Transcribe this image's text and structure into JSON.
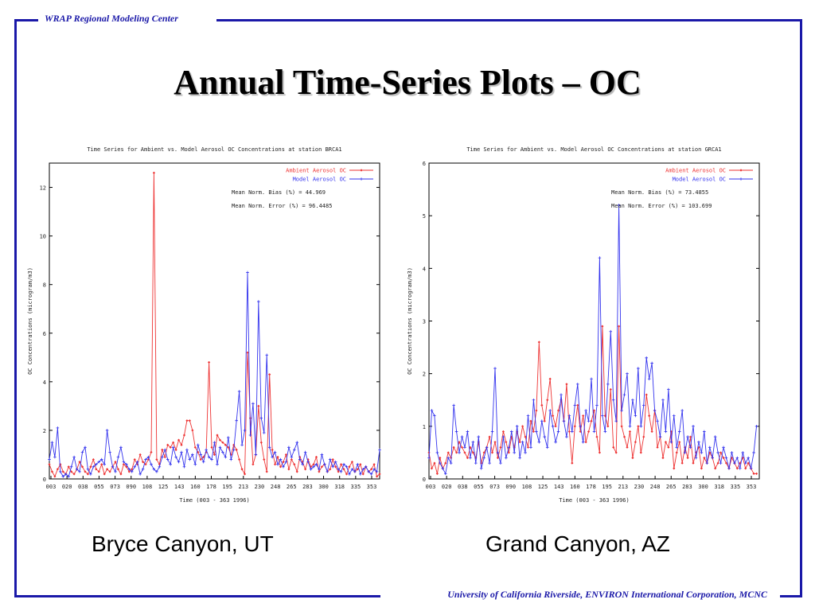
{
  "header": {
    "org": "WRAP Regional Modeling Center"
  },
  "footer": {
    "credits": "University of California Riverside, ENVIRON International Corporation, MCNC"
  },
  "slide": {
    "title": "Annual Time-Series Plots – OC"
  },
  "captions": [
    "Bryce Canyon, UT",
    "Grand Canyon, AZ"
  ],
  "colors": {
    "frame": "#1a18a8",
    "ambient": "#ee3333",
    "model": "#3333ee"
  },
  "chart_data": [
    {
      "type": "line",
      "title": "Time Series for Ambient vs. Model Aerosol OC Concentrations at station BRCA1",
      "xlabel": "Time    (003 - 363 1996)",
      "ylabel": "OC Concentrations (microgram/m3)",
      "xlim": [
        3,
        363
      ],
      "ylim": [
        0,
        13
      ],
      "yticks": [
        0,
        2,
        4,
        6,
        8,
        10,
        12
      ],
      "xticks": [
        "003",
        "020",
        "038",
        "055",
        "073",
        "090",
        "108",
        "125",
        "143",
        "160",
        "178",
        "195",
        "213",
        "230",
        "248",
        "265",
        "283",
        "300",
        "318",
        "335",
        "353"
      ],
      "legend_position": "top-right",
      "annotations": [
        "Mean Norm. Bias (%) = 44.969",
        "Mean Norm. Error (%) = 96.4485"
      ],
      "series": [
        {
          "name": "Ambient Aerosol OC",
          "marker": "diamond",
          "x": [
            3,
            6,
            9,
            12,
            15,
            18,
            21,
            24,
            27,
            30,
            33,
            36,
            39,
            42,
            45,
            48,
            51,
            54,
            57,
            60,
            63,
            66,
            69,
            72,
            75,
            78,
            81,
            84,
            87,
            90,
            93,
            96,
            99,
            102,
            105,
            108,
            111,
            114,
            117,
            120,
            123,
            126,
            129,
            132,
            135,
            138,
            141,
            144,
            147,
            150,
            153,
            156,
            159,
            162,
            165,
            168,
            171,
            174,
            177,
            180,
            183,
            186,
            189,
            192,
            195,
            198,
            201,
            204,
            207,
            210,
            213,
            216,
            219,
            222,
            225,
            228,
            231,
            234,
            237,
            240,
            243,
            246,
            249,
            252,
            255,
            258,
            261,
            264,
            267,
            270,
            273,
            276,
            279,
            282,
            285,
            288,
            291,
            294,
            297,
            300,
            303,
            306,
            309,
            312,
            315,
            318,
            321,
            324,
            327,
            330,
            333,
            336,
            339,
            342,
            345,
            348,
            351,
            354,
            357,
            360,
            363
          ],
          "y": [
            0.6,
            0.3,
            0.1,
            0.4,
            0.6,
            0.3,
            0.2,
            0.5,
            0.3,
            0.2,
            0.4,
            0.7,
            0.5,
            0.3,
            0.2,
            0.5,
            0.8,
            0.4,
            0.3,
            0.6,
            0.2,
            0.4,
            0.3,
            0.5,
            0.7,
            0.4,
            0.2,
            0.6,
            0.5,
            0.3,
            0.4,
            0.8,
            0.6,
            1.0,
            0.7,
            0.6,
            0.8,
            1.1,
            12.6,
            0.8,
            0.6,
            1.2,
            0.9,
            1.4,
            1.3,
            1.5,
            1.2,
            1.6,
            1.4,
            1.8,
            2.4,
            2.4,
            2.0,
            1.3,
            1.1,
            0.8,
            0.9,
            1.1,
            4.8,
            1.3,
            1.0,
            1.8,
            1.6,
            1.5,
            1.4,
            1.3,
            1.0,
            1.4,
            1.2,
            0.8,
            0.4,
            0.2,
            5.2,
            2.5,
            0.6,
            1.0,
            3.0,
            1.5,
            0.8,
            0.3,
            4.3,
            1.2,
            0.6,
            0.9,
            0.5,
            0.7,
            1.0,
            0.4,
            0.8,
            0.6,
            0.3,
            0.9,
            0.7,
            0.4,
            0.8,
            0.5,
            0.6,
            0.9,
            0.3,
            0.5,
            0.6,
            0.3,
            0.4,
            0.8,
            0.5,
            0.3,
            0.6,
            0.4,
            0.2,
            0.5,
            0.7,
            0.3,
            0.4,
            0.6,
            0.2,
            0.5,
            0.3,
            0.4,
            0.6,
            0.1,
            0.2
          ]
        },
        {
          "name": "Model Aerosol OC",
          "marker": "plus",
          "x": [
            3,
            6,
            9,
            12,
            15,
            18,
            21,
            24,
            27,
            30,
            33,
            36,
            39,
            42,
            45,
            48,
            51,
            54,
            57,
            60,
            63,
            66,
            69,
            72,
            75,
            78,
            81,
            84,
            87,
            90,
            93,
            96,
            99,
            102,
            105,
            108,
            111,
            114,
            117,
            120,
            123,
            126,
            129,
            132,
            135,
            138,
            141,
            144,
            147,
            150,
            153,
            156,
            159,
            162,
            165,
            168,
            171,
            174,
            177,
            180,
            183,
            186,
            189,
            192,
            195,
            198,
            201,
            204,
            207,
            210,
            213,
            216,
            219,
            222,
            225,
            228,
            231,
            234,
            237,
            240,
            243,
            246,
            249,
            252,
            255,
            258,
            261,
            264,
            267,
            270,
            273,
            276,
            279,
            282,
            285,
            288,
            291,
            294,
            297,
            300,
            303,
            306,
            309,
            312,
            315,
            318,
            321,
            324,
            327,
            330,
            333,
            336,
            339,
            342,
            345,
            348,
            351,
            354,
            357,
            360,
            363
          ],
          "y": [
            0.8,
            1.5,
            0.9,
            2.1,
            0.3,
            0.1,
            0.2,
            0.1,
            0.5,
            0.9,
            0.4,
            0.3,
            1.1,
            1.3,
            0.4,
            0.2,
            0.5,
            0.6,
            0.7,
            0.8,
            0.6,
            2.0,
            1.1,
            0.5,
            0.3,
            0.9,
            1.3,
            0.7,
            0.6,
            0.4,
            0.3,
            0.5,
            0.7,
            0.2,
            0.4,
            0.8,
            0.9,
            0.6,
            0.4,
            0.3,
            0.5,
            0.9,
            1.2,
            0.8,
            0.6,
            1.3,
            0.9,
            0.7,
            1.1,
            0.5,
            1.2,
            0.8,
            1.0,
            0.6,
            1.4,
            1.0,
            0.7,
            1.2,
            0.9,
            0.8,
            1.5,
            0.6,
            1.3,
            1.1,
            0.9,
            1.7,
            0.8,
            1.2,
            2.4,
            3.6,
            1.4,
            2.0,
            8.5,
            1.8,
            3.1,
            1.0,
            7.3,
            2.5,
            1.9,
            5.1,
            1.3,
            0.9,
            1.1,
            0.6,
            0.8,
            0.5,
            0.7,
            1.3,
            0.9,
            1.2,
            1.5,
            0.8,
            0.6,
            1.1,
            0.7,
            0.4,
            0.5,
            0.6,
            0.4,
            1.0,
            0.6,
            0.3,
            0.8,
            0.5,
            0.7,
            0.4,
            0.3,
            0.6,
            0.5,
            0.2,
            0.4,
            0.3,
            0.6,
            0.2,
            0.4,
            0.5,
            0.3,
            0.2,
            0.4,
            0.3,
            1.2
          ]
        }
      ]
    },
    {
      "type": "line",
      "title": "Time Series for Ambient vs. Model Aerosol OC Concentrations at station GRCA1",
      "xlabel": "Time    (003 - 363 1996)",
      "ylabel": "OC Concentrations (microgram/m3)",
      "xlim": [
        3,
        363
      ],
      "ylim": [
        0,
        6
      ],
      "yticks": [
        0,
        1,
        2,
        3,
        4,
        5,
        6
      ],
      "xticks": [
        "003",
        "020",
        "038",
        "055",
        "073",
        "090",
        "108",
        "125",
        "143",
        "160",
        "178",
        "195",
        "213",
        "230",
        "248",
        "265",
        "283",
        "300",
        "318",
        "335",
        "353"
      ],
      "legend_position": "top-right",
      "annotations": [
        "Mean Norm. Bias (%) = 73.4855",
        "Mean Norm. Error (%) = 103.699"
      ],
      "series": [
        {
          "name": "Ambient Aerosol OC",
          "marker": "diamond",
          "x": [
            3,
            6,
            9,
            12,
            15,
            18,
            21,
            24,
            27,
            30,
            33,
            36,
            39,
            42,
            45,
            48,
            51,
            54,
            57,
            60,
            63,
            66,
            69,
            72,
            75,
            78,
            81,
            84,
            87,
            90,
            93,
            96,
            99,
            102,
            105,
            108,
            111,
            114,
            117,
            120,
            123,
            126,
            129,
            132,
            135,
            138,
            141,
            144,
            147,
            150,
            153,
            156,
            159,
            162,
            165,
            168,
            171,
            174,
            177,
            180,
            183,
            186,
            189,
            192,
            195,
            198,
            201,
            204,
            207,
            210,
            213,
            216,
            219,
            222,
            225,
            228,
            231,
            234,
            237,
            240,
            243,
            246,
            249,
            252,
            255,
            258,
            261,
            264,
            267,
            270,
            273,
            276,
            279,
            282,
            285,
            288,
            291,
            294,
            297,
            300,
            303,
            306,
            309,
            312,
            315,
            318,
            321,
            324,
            327,
            330,
            333,
            336,
            339,
            342,
            345,
            348,
            351,
            354,
            357,
            360
          ],
          "y": [
            0.5,
            0.2,
            0.3,
            0.1,
            0.4,
            0.2,
            0.3,
            0.5,
            0.4,
            0.6,
            0.5,
            0.7,
            0.6,
            0.5,
            0.4,
            0.6,
            0.5,
            0.4,
            0.7,
            0.3,
            0.5,
            0.6,
            0.8,
            0.5,
            0.7,
            0.4,
            0.6,
            0.9,
            0.7,
            0.5,
            0.8,
            0.6,
            0.9,
            0.7,
            1.0,
            0.8,
            0.6,
            1.1,
            0.9,
            1.3,
            2.6,
            1.4,
            1.1,
            1.5,
            1.9,
            1.2,
            1.0,
            1.3,
            1.5,
            1.1,
            1.8,
            0.9,
            0.3,
            1.0,
            1.4,
            0.9,
            1.2,
            0.7,
            0.9,
            1.1,
            1.3,
            0.8,
            0.5,
            2.9,
            1.2,
            1.0,
            1.7,
            0.6,
            0.5,
            2.9,
            1.0,
            0.8,
            0.6,
            0.9,
            0.4,
            0.7,
            1.0,
            0.5,
            0.8,
            1.6,
            1.2,
            0.9,
            1.3,
            0.6,
            0.8,
            0.4,
            0.7,
            0.6,
            0.9,
            0.2,
            0.5,
            0.7,
            0.3,
            0.6,
            0.4,
            0.8,
            0.3,
            0.5,
            0.6,
            0.2,
            0.4,
            0.3,
            0.5,
            0.4,
            0.2,
            0.3,
            0.5,
            0.4,
            0.3,
            0.2,
            0.4,
            0.3,
            0.2,
            0.3,
            0.4,
            0.2,
            0.3,
            0.2,
            0.1,
            0.1
          ]
        },
        {
          "name": "Model Aerosol OC",
          "marker": "plus",
          "x": [
            3,
            6,
            9,
            12,
            15,
            18,
            21,
            24,
            27,
            30,
            33,
            36,
            39,
            42,
            45,
            48,
            51,
            54,
            57,
            60,
            63,
            66,
            69,
            72,
            75,
            78,
            81,
            84,
            87,
            90,
            93,
            96,
            99,
            102,
            105,
            108,
            111,
            114,
            117,
            120,
            123,
            126,
            129,
            132,
            135,
            138,
            141,
            144,
            147,
            150,
            153,
            156,
            159,
            162,
            165,
            168,
            171,
            174,
            177,
            180,
            183,
            186,
            189,
            192,
            195,
            198,
            201,
            204,
            207,
            210,
            213,
            216,
            219,
            222,
            225,
            228,
            231,
            234,
            237,
            240,
            243,
            246,
            249,
            252,
            255,
            258,
            261,
            264,
            267,
            270,
            273,
            276,
            279,
            282,
            285,
            288,
            291,
            294,
            297,
            300,
            303,
            306,
            309,
            312,
            315,
            318,
            321,
            324,
            327,
            330,
            333,
            336,
            339,
            342,
            345,
            348,
            351,
            354,
            357,
            360
          ],
          "y": [
            0.4,
            1.3,
            1.2,
            0.5,
            0.3,
            0.2,
            0.1,
            0.4,
            0.3,
            1.4,
            0.9,
            0.5,
            0.8,
            0.6,
            0.9,
            0.4,
            0.7,
            0.3,
            0.8,
            0.2,
            0.4,
            0.6,
            0.3,
            0.9,
            2.1,
            0.5,
            0.3,
            0.8,
            0.4,
            0.6,
            0.9,
            0.5,
            1.0,
            0.4,
            0.7,
            0.5,
            1.2,
            0.6,
            1.5,
            0.9,
            0.7,
            1.1,
            0.8,
            0.6,
            1.3,
            1.0,
            0.7,
            0.9,
            1.6,
            1.1,
            0.8,
            1.2,
            0.9,
            1.4,
            1.8,
            1.0,
            0.7,
            1.3,
            1.1,
            1.9,
            0.9,
            1.4,
            4.2,
            1.2,
            0.9,
            1.8,
            2.8,
            1.5,
            1.1,
            5.2,
            1.3,
            1.6,
            2.0,
            1.0,
            1.5,
            1.2,
            2.1,
            1.0,
            1.4,
            2.3,
            1.9,
            2.2,
            1.3,
            1.1,
            0.8,
            1.5,
            0.9,
            1.7,
            0.7,
            1.2,
            0.6,
            0.9,
            1.3,
            0.5,
            0.8,
            0.6,
            1.0,
            0.4,
            0.7,
            0.5,
            0.9,
            0.3,
            0.6,
            0.4,
            0.8,
            0.5,
            0.3,
            0.6,
            0.4,
            0.2,
            0.5,
            0.3,
            0.4,
            0.2,
            0.5,
            0.3,
            0.4,
            0.2,
            0.5,
            1.0
          ]
        }
      ]
    }
  ]
}
